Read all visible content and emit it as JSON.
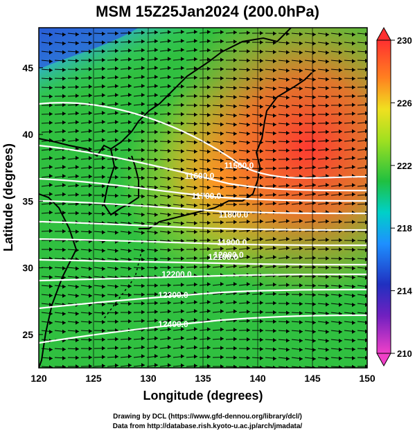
{
  "header": {
    "title": "MSM 15Z25Jan2024 (200.0hPa)"
  },
  "axes": {
    "xlabel": "Longitude (degrees)",
    "ylabel": "Latitude  (degrees)",
    "xticks": [
      "120",
      "125",
      "130",
      "135",
      "140",
      "145",
      "150"
    ],
    "yticks": [
      "25",
      "30",
      "35",
      "40",
      "45"
    ]
  },
  "colorbar": {
    "ticks": [
      "230",
      "226",
      "222",
      "218",
      "214",
      "210"
    ],
    "colors": [
      "#e040c0",
      "#2020b0",
      "#1e90ff",
      "#00d0c8",
      "#20c040",
      "#a0e020",
      "#f0e020",
      "#ff9020",
      "#ff4030"
    ]
  },
  "contours": [
    {
      "label": "11500.0"
    },
    {
      "label": "11600.0"
    },
    {
      "label": "11700.0"
    },
    {
      "label": "11800.0"
    },
    {
      "label": "11900.0"
    },
    {
      "label": "12000.0"
    },
    {
      "label": "12100.0"
    },
    {
      "label": "12200.0"
    },
    {
      "label": "12300.0"
    },
    {
      "label": "12400.0"
    }
  ],
  "credits": {
    "line1": "Drawing by DCL (https://www.gfd-dennou.org/library/dcl/)",
    "line2": "Data from http://database.rish.kyoto-u.ac.jp/arch/jmadata/"
  }
}
